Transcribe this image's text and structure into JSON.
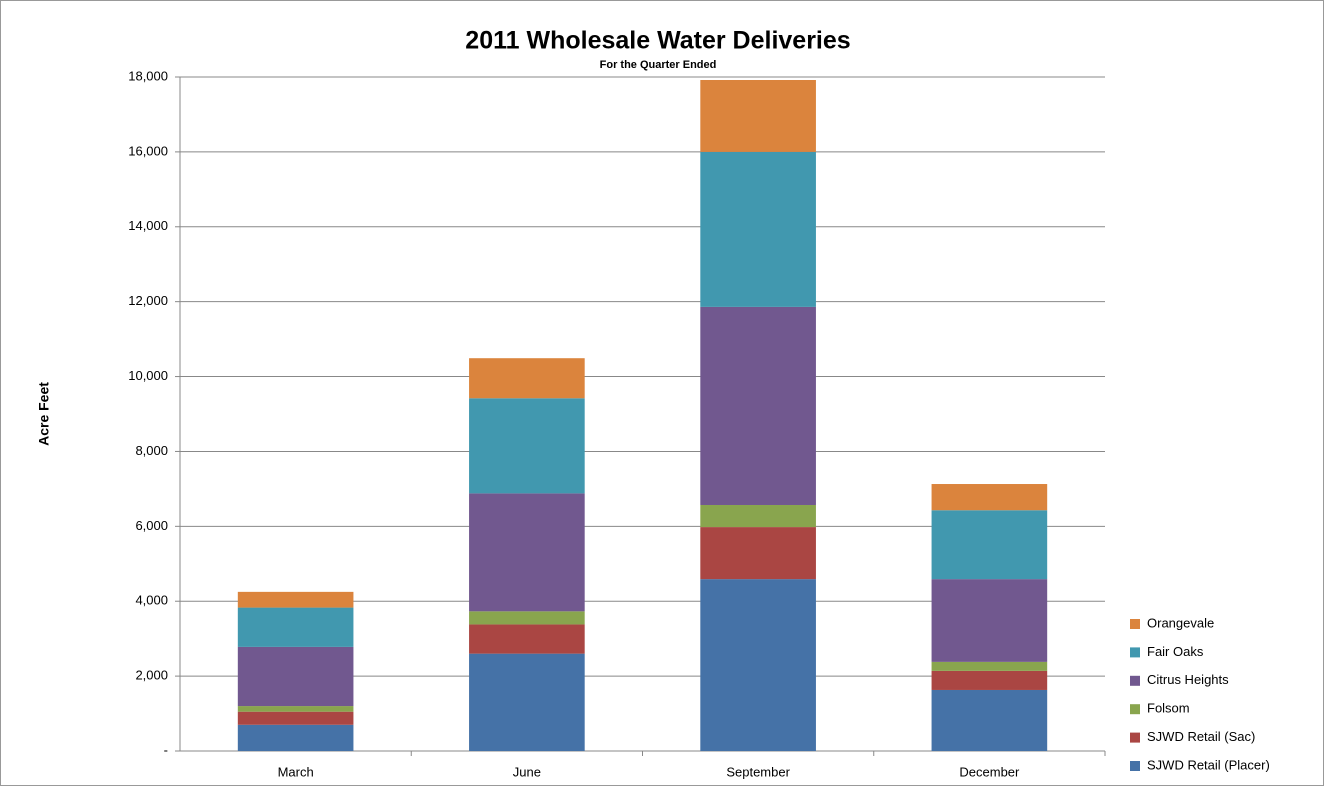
{
  "chart_data": {
    "type": "stacked_bar",
    "title": "2011 Wholesale Water Deliveries",
    "subtitle": "For the Quarter Ended",
    "y_label": "Acre Feet",
    "categories": [
      "March",
      "June",
      "September",
      "December"
    ],
    "series": [
      {
        "name": "SJWD Retail (Placer)",
        "color": "#4572a7",
        "values": [
          700,
          2600,
          4590,
          1630
        ]
      },
      {
        "name": "SJWD Retail (Sac)",
        "color": "#aa4643",
        "values": [
          350,
          780,
          1390,
          510
        ]
      },
      {
        "name": "Folsom",
        "color": "#89a54e",
        "values": [
          150,
          350,
          590,
          240
        ]
      },
      {
        "name": "Citrus Heights",
        "color": "#71588f",
        "values": [
          1580,
          3150,
          5290,
          2210
        ]
      },
      {
        "name": "Fair Oaks",
        "color": "#4198af",
        "values": [
          1050,
          2540,
          4140,
          1840
        ]
      },
      {
        "name": "Orangevale",
        "color": "#db843d",
        "values": [
          420,
          1070,
          1920,
          700
        ]
      }
    ],
    "ylim": [
      0,
      18000
    ],
    "yticks": [
      {
        "value": 0,
        "label": "-"
      },
      {
        "value": 2000,
        "label": "2,000"
      },
      {
        "value": 4000,
        "label": "4,000"
      },
      {
        "value": 6000,
        "label": "6,000"
      },
      {
        "value": 8000,
        "label": "8,000"
      },
      {
        "value": 10000,
        "label": "10,000"
      },
      {
        "value": 12000,
        "label": "12,000"
      },
      {
        "value": 14000,
        "label": "14,000"
      },
      {
        "value": 16000,
        "label": "16,000"
      },
      {
        "value": 18000,
        "label": "18,000"
      }
    ],
    "grid": true,
    "legend": "bottom-right"
  }
}
